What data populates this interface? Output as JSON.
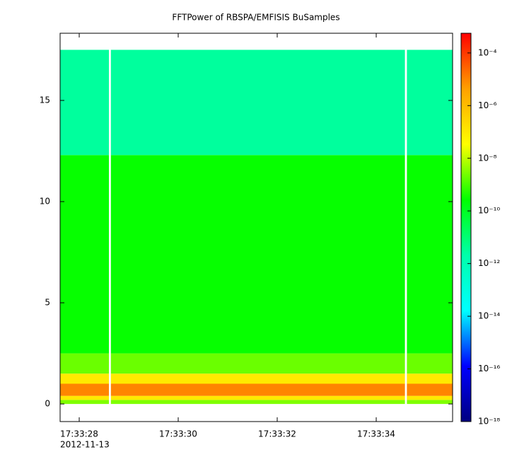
{
  "chart_data": {
    "type": "spectrogram",
    "title": "FFTPower of RBSPA/EMFISIS  BuSamples",
    "date_label": "2012-11-13",
    "x_bins": [
      27.614,
      28.6,
      28.64,
      34.58,
      34.62,
      35.543
    ],
    "y_bins": [
      0,
      0.2,
      0.4,
      1.0,
      1.5,
      2.5,
      12.3,
      17.5
    ],
    "values": [
      [
        3e-09,
        null,
        3e-09,
        null,
        3e-09
      ],
      [
        1e-07,
        null,
        1e-07,
        null,
        1e-07
      ],
      [
        1e-05,
        null,
        1e-05,
        null,
        1e-05
      ],
      [
        1e-07,
        null,
        1e-07,
        null,
        1e-07
      ],
      [
        2e-09,
        null,
        2e-09,
        null,
        2e-09
      ],
      [
        3e-10,
        null,
        3e-10,
        null,
        3e-10
      ],
      [
        3e-12,
        null,
        3e-12,
        null,
        3e-12
      ]
    ],
    "xlim": [
      27.614,
      35.543
    ],
    "xticks": [
      {
        "value": 28,
        "label": "17:33:28"
      },
      {
        "value": 30,
        "label": "17:33:30"
      },
      {
        "value": 32,
        "label": "17:33:32"
      },
      {
        "value": 34,
        "label": "17:33:34"
      }
    ],
    "ylim": [
      -0.87,
      18.32
    ],
    "yticks": [
      0,
      5,
      10,
      15
    ],
    "zlim": [
      1e-18,
      0.00056
    ],
    "zlog": true,
    "zticks": [
      {
        "value": 1e-18,
        "label": "10⁻¹⁸"
      },
      {
        "value": 1e-16,
        "label": "10⁻¹⁶"
      },
      {
        "value": 1e-14,
        "label": "10⁻¹⁴"
      },
      {
        "value": 1e-12,
        "label": "10⁻¹²"
      },
      {
        "value": 1e-10,
        "label": "10⁻¹⁰"
      },
      {
        "value": 1e-08,
        "label": "10⁻⁸"
      },
      {
        "value": 1e-06,
        "label": "10⁻⁶"
      },
      {
        "value": 0.0001,
        "label": "10⁻⁴"
      }
    ],
    "colormap": [
      "#000080",
      "#0000ff",
      "#00ffff",
      "#00ffaa",
      "#00ff00",
      "#ffff00",
      "#ffa000",
      "#ff0000"
    ]
  }
}
